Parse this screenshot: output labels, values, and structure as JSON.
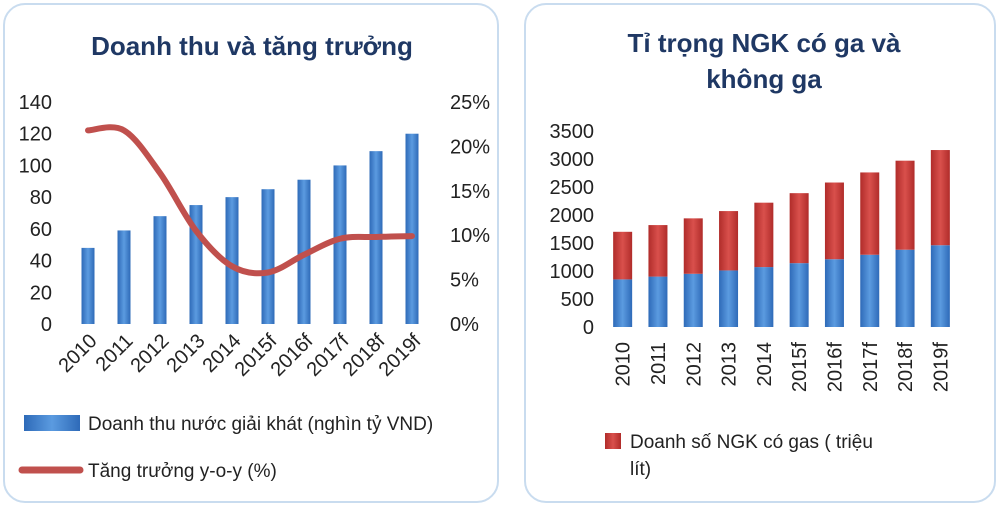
{
  "chart_data": [
    {
      "type": "bar",
      "title": "Doanh thu và tăng trưởng",
      "categories": [
        "2010",
        "2011",
        "2012",
        "2013",
        "2014",
        "2015f",
        "2016f",
        "2017f",
        "2018f",
        "2019f"
      ],
      "y_ticks": [
        "0",
        "20",
        "40",
        "60",
        "80",
        "100",
        "120",
        "140"
      ],
      "ylim": [
        0,
        140
      ],
      "y2_ticks": [
        "0%",
        "5%",
        "10%",
        "15%",
        "20%",
        "25%"
      ],
      "y2lim": [
        0,
        25
      ],
      "series": [
        {
          "name": "Doanh thu nước giải khát (nghìn tỷ VND)",
          "type": "bar",
          "axis": "left",
          "values": [
            48,
            59,
            68,
            75,
            80,
            85,
            91,
            100,
            109,
            120
          ],
          "color": "#3f7fcf"
        },
        {
          "name": "Tăng trưởng y-o-y (%)",
          "type": "line",
          "axis": "right",
          "values": [
            21.8,
            21.8,
            17.0,
            10.5,
            6.5,
            5.8,
            7.8,
            9.6,
            9.8,
            9.9
          ],
          "color": "#c0504d"
        }
      ],
      "grid": false,
      "legend_position": "bottom"
    },
    {
      "type": "bar",
      "stacked": true,
      "title_lines": [
        "Tỉ trọng NGK có ga và",
        "không ga"
      ],
      "categories": [
        "2010",
        "2011",
        "2012",
        "2013",
        "2014",
        "2015f",
        "2016f",
        "2017f",
        "2018f",
        "2019f"
      ],
      "y_ticks": [
        "0",
        "500",
        "1000",
        "1500",
        "2000",
        "2500",
        "3000",
        "3500"
      ],
      "ylim": [
        0,
        3500
      ],
      "series": [
        {
          "name": "",
          "values": [
            850,
            900,
            950,
            1010,
            1070,
            1140,
            1210,
            1290,
            1380,
            1460
          ],
          "color": "#3f7fcf"
        },
        {
          "name": "Doanh số NGK có gas ( triệu lít)",
          "legend_lines": [
            "Doanh số NGK có gas ( triệu",
            "lít)"
          ],
          "values": [
            850,
            920,
            990,
            1060,
            1150,
            1250,
            1370,
            1470,
            1590,
            1700
          ],
          "color": "#c83a38"
        }
      ],
      "grid": false,
      "legend_position": "bottom"
    }
  ]
}
